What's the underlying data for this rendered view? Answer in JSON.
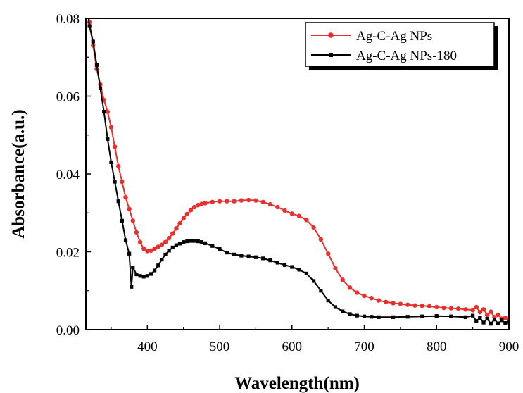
{
  "chart_data": {
    "type": "line",
    "xlabel": "Wavelength(nm)",
    "ylabel": "Absorbance(a.u.)",
    "xlim": [
      315,
      900
    ],
    "ylim": [
      0,
      0.08
    ],
    "x_ticks": [
      400,
      500,
      600,
      700,
      800,
      900
    ],
    "y_ticks": [
      "0.00",
      "0.02",
      "0.04",
      "0.06",
      "0.08"
    ],
    "legend": {
      "placement": "top-right",
      "boxed": true,
      "shadow": true
    },
    "series": [
      {
        "name": "Ag-C-Ag NPs",
        "color": "#e8312f",
        "marker": "circle",
        "points": [
          [
            318,
            0.082
          ],
          [
            320,
            0.079
          ],
          [
            325,
            0.073
          ],
          [
            330,
            0.067
          ],
          [
            335,
            0.063
          ],
          [
            340,
            0.059
          ],
          [
            345,
            0.056
          ],
          [
            350,
            0.052
          ],
          [
            355,
            0.047
          ],
          [
            360,
            0.042
          ],
          [
            365,
            0.038
          ],
          [
            370,
            0.034
          ],
          [
            375,
            0.031
          ],
          [
            380,
            0.028
          ],
          [
            385,
            0.025
          ],
          [
            390,
            0.0225
          ],
          [
            395,
            0.0208
          ],
          [
            400,
            0.0202
          ],
          [
            405,
            0.0203
          ],
          [
            410,
            0.0208
          ],
          [
            415,
            0.0213
          ],
          [
            420,
            0.0218
          ],
          [
            425,
            0.0225
          ],
          [
            430,
            0.0235
          ],
          [
            435,
            0.0247
          ],
          [
            440,
            0.026
          ],
          [
            445,
            0.0273
          ],
          [
            450,
            0.0286
          ],
          [
            455,
            0.0297
          ],
          [
            460,
            0.0307
          ],
          [
            465,
            0.0315
          ],
          [
            470,
            0.032
          ],
          [
            475,
            0.0323
          ],
          [
            480,
            0.0325
          ],
          [
            490,
            0.0328
          ],
          [
            500,
            0.033
          ],
          [
            510,
            0.033
          ],
          [
            520,
            0.033
          ],
          [
            530,
            0.0332
          ],
          [
            540,
            0.0333
          ],
          [
            550,
            0.0332
          ],
          [
            560,
            0.0328
          ],
          [
            570,
            0.0322
          ],
          [
            580,
            0.0315
          ],
          [
            590,
            0.0306
          ],
          [
            600,
            0.0298
          ],
          [
            610,
            0.0292
          ],
          [
            620,
            0.0282
          ],
          [
            630,
            0.0262
          ],
          [
            640,
            0.0232
          ],
          [
            650,
            0.0195
          ],
          [
            660,
            0.0158
          ],
          [
            670,
            0.0128
          ],
          [
            680,
            0.0108
          ],
          [
            690,
            0.0095
          ],
          [
            700,
            0.0087
          ],
          [
            710,
            0.0081
          ],
          [
            720,
            0.0075
          ],
          [
            730,
            0.0071
          ],
          [
            740,
            0.0068
          ],
          [
            750,
            0.0066
          ],
          [
            760,
            0.0064
          ],
          [
            770,
            0.0062
          ],
          [
            780,
            0.0061
          ],
          [
            790,
            0.006
          ],
          [
            800,
            0.0058
          ],
          [
            810,
            0.0056
          ],
          [
            820,
            0.0055
          ],
          [
            830,
            0.0054
          ],
          [
            840,
            0.0052
          ],
          [
            850,
            0.005
          ],
          [
            855,
            0.0058
          ],
          [
            860,
            0.0045
          ],
          [
            865,
            0.0052
          ],
          [
            870,
            0.0038
          ],
          [
            875,
            0.0046
          ],
          [
            880,
            0.0032
          ],
          [
            885,
            0.0038
          ],
          [
            890,
            0.0028
          ],
          [
            895,
            0.003
          ],
          [
            900,
            0.0025
          ]
        ]
      },
      {
        "name": "Ag-C-Ag NPs-180",
        "color": "#000000",
        "marker": "square",
        "points": [
          [
            318,
            0.081
          ],
          [
            320,
            0.078
          ],
          [
            325,
            0.074
          ],
          [
            330,
            0.068
          ],
          [
            335,
            0.062
          ],
          [
            340,
            0.056
          ],
          [
            345,
            0.049
          ],
          [
            350,
            0.043
          ],
          [
            355,
            0.038
          ],
          [
            360,
            0.033
          ],
          [
            365,
            0.028
          ],
          [
            370,
            0.023
          ],
          [
            375,
            0.0195
          ],
          [
            378,
            0.011
          ],
          [
            380,
            0.016
          ],
          [
            385,
            0.0142
          ],
          [
            390,
            0.0138
          ],
          [
            395,
            0.0136
          ],
          [
            400,
            0.0138
          ],
          [
            405,
            0.0143
          ],
          [
            410,
            0.0152
          ],
          [
            415,
            0.0165
          ],
          [
            420,
            0.018
          ],
          [
            425,
            0.0193
          ],
          [
            430,
            0.0203
          ],
          [
            435,
            0.0211
          ],
          [
            440,
            0.0217
          ],
          [
            445,
            0.0221
          ],
          [
            450,
            0.0225
          ],
          [
            455,
            0.0227
          ],
          [
            460,
            0.0228
          ],
          [
            465,
            0.0228
          ],
          [
            470,
            0.0227
          ],
          [
            475,
            0.0225
          ],
          [
            480,
            0.0222
          ],
          [
            490,
            0.0215
          ],
          [
            500,
            0.0207
          ],
          [
            510,
            0.0198
          ],
          [
            520,
            0.0193
          ],
          [
            530,
            0.019
          ],
          [
            540,
            0.0188
          ],
          [
            550,
            0.0186
          ],
          [
            560,
            0.0183
          ],
          [
            570,
            0.0178
          ],
          [
            580,
            0.0172
          ],
          [
            590,
            0.0166
          ],
          [
            600,
            0.0161
          ],
          [
            610,
            0.0154
          ],
          [
            620,
            0.0144
          ],
          [
            630,
            0.0125
          ],
          [
            640,
            0.01
          ],
          [
            650,
            0.0075
          ],
          [
            660,
            0.0058
          ],
          [
            670,
            0.0047
          ],
          [
            680,
            0.004
          ],
          [
            690,
            0.0036
          ],
          [
            700,
            0.0034
          ],
          [
            710,
            0.0033
          ],
          [
            720,
            0.0032
          ],
          [
            740,
            0.0032
          ],
          [
            760,
            0.0033
          ],
          [
            780,
            0.0034
          ],
          [
            800,
            0.0035
          ],
          [
            820,
            0.0034
          ],
          [
            840,
            0.0032
          ],
          [
            850,
            0.0036
          ],
          [
            855,
            0.0022
          ],
          [
            860,
            0.003
          ],
          [
            865,
            0.0018
          ],
          [
            870,
            0.0028
          ],
          [
            875,
            0.0015
          ],
          [
            880,
            0.0026
          ],
          [
            885,
            0.0016
          ],
          [
            890,
            0.0024
          ],
          [
            895,
            0.0017
          ],
          [
            900,
            0.002
          ]
        ]
      }
    ]
  }
}
